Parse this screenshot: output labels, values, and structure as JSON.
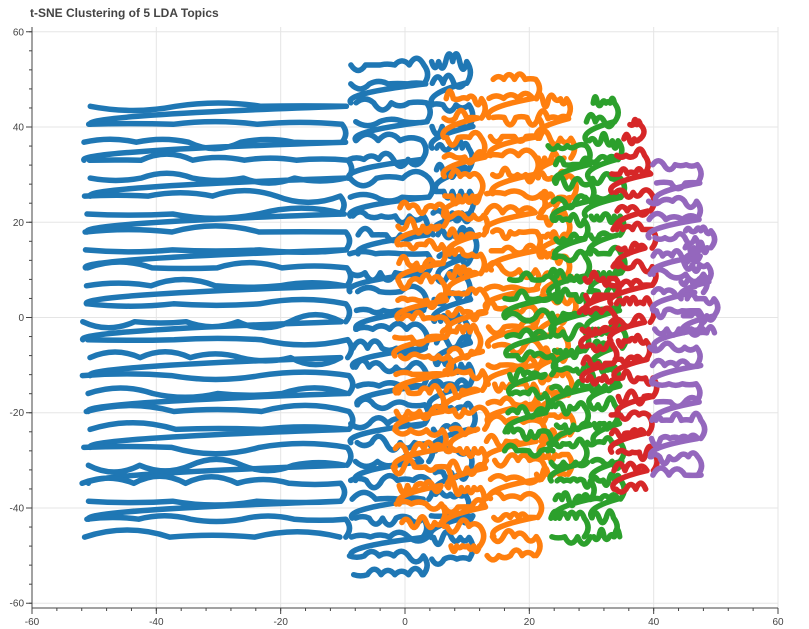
{
  "chart_data": {
    "type": "scatter",
    "title": "t-SNE Clustering of 5 LDA Topics",
    "xlabel": "",
    "ylabel": "",
    "xlim": [
      -60,
      60
    ],
    "ylim": [
      -61,
      61
    ],
    "grid": true,
    "x_ticks": [
      -60,
      -40,
      -20,
      0,
      20,
      40,
      60
    ],
    "y_ticks": [
      -60,
      -40,
      -20,
      0,
      20,
      40,
      60
    ],
    "series": [
      {
        "color": "#1f77b4",
        "clusters": [
          {
            "x": [
              -52,
              -9
            ],
            "y": [
              -48,
              50
            ],
            "rows": 26
          },
          {
            "x": [
              -9,
              4
            ],
            "y": [
              -56,
              55
            ],
            "rows": 28
          },
          {
            "x": [
              4,
              11
            ],
            "y": [
              -53,
              56
            ],
            "rows": 24
          }
        ]
      },
      {
        "color": "#ff7f0e",
        "clusters": [
          {
            "x": [
              -2,
              7
            ],
            "y": [
              -45,
              25
            ],
            "rows": 18
          },
          {
            "x": [
              6,
              13
            ],
            "y": [
              -50,
              48
            ],
            "rows": 24
          },
          {
            "x": [
              13,
              22
            ],
            "y": [
              -52,
              52
            ],
            "rows": 26
          },
          {
            "x": [
              21,
              27
            ],
            "y": [
              -35,
              48
            ],
            "rows": 20
          }
        ]
      },
      {
        "color": "#2ca02c",
        "clusters": [
          {
            "x": [
              16,
              24
            ],
            "y": [
              -30,
              10
            ],
            "rows": 10
          },
          {
            "x": [
              23,
              30
            ],
            "y": [
              -48,
              38
            ],
            "rows": 22
          },
          {
            "x": [
              29,
              35
            ],
            "y": [
              -48,
              47
            ],
            "rows": 24
          }
        ]
      },
      {
        "color": "#d62728",
        "clusters": [
          {
            "x": [
              28,
              34
            ],
            "y": [
              -15,
              10
            ],
            "rows": 7
          },
          {
            "x": [
              33,
              40
            ],
            "y": [
              -38,
              36
            ],
            "rows": 19
          },
          {
            "x": [
              35,
              39
            ],
            "y": [
              36,
              42
            ],
            "rows": 2
          }
        ]
      },
      {
        "color": "#9467bd",
        "clusters": [
          {
            "x": [
              39,
              48
            ],
            "y": [
              -35,
              34
            ],
            "rows": 18
          },
          {
            "x": [
              44,
              50
            ],
            "y": [
              -5,
              20
            ],
            "rows": 7
          }
        ]
      }
    ]
  }
}
